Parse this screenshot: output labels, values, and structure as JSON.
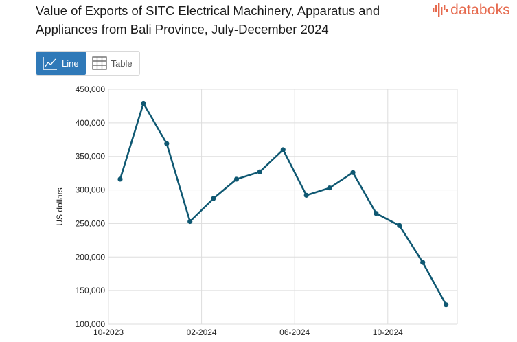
{
  "header": {
    "title": "Value of Exports of SITC Electrical Machinery, Apparatus and Appliances from Bali Province, July-December 2024",
    "logo_text": "databoks",
    "logo_icon": "bar-pattern-logo-icon"
  },
  "view_toggle": {
    "line_label": "Line",
    "table_label": "Table",
    "active": "line"
  },
  "colors": {
    "line": "#0f5872",
    "accent": "#2f79b8",
    "logo": "#e66a4e",
    "grid": "#dddddd"
  },
  "chart_data": {
    "type": "line",
    "title": "Value of Exports of SITC Electrical Machinery, Apparatus and Appliances from Bali Province, July-December 2024",
    "xlabel": "",
    "ylabel": "US dollars",
    "ylim": [
      100000,
      450000
    ],
    "yticks": [
      100000,
      150000,
      200000,
      250000,
      300000,
      350000,
      400000,
      450000
    ],
    "ytick_labels": [
      "100,000",
      "150,000",
      "200,000",
      "250,000",
      "300,000",
      "350,000",
      "400,000",
      "450,000"
    ],
    "x_tick_labels": [
      "10-2023",
      "02-2024",
      "06-2024",
      "10-2024"
    ],
    "x_tick_indices": [
      0,
      4,
      8,
      12
    ],
    "categories": [
      "10-2023",
      "11-2023",
      "12-2023",
      "01-2024",
      "02-2024",
      "03-2024",
      "04-2024",
      "05-2024",
      "06-2024",
      "07-2024",
      "08-2024",
      "09-2024",
      "10-2024",
      "11-2024",
      "12-2024"
    ],
    "series": [
      {
        "name": "US dollars",
        "values": [
          316000,
          429000,
          369000,
          253000,
          287000,
          316000,
          327000,
          360000,
          292000,
          303000,
          326000,
          265000,
          247000,
          192000,
          129000
        ]
      }
    ],
    "grid": true
  }
}
